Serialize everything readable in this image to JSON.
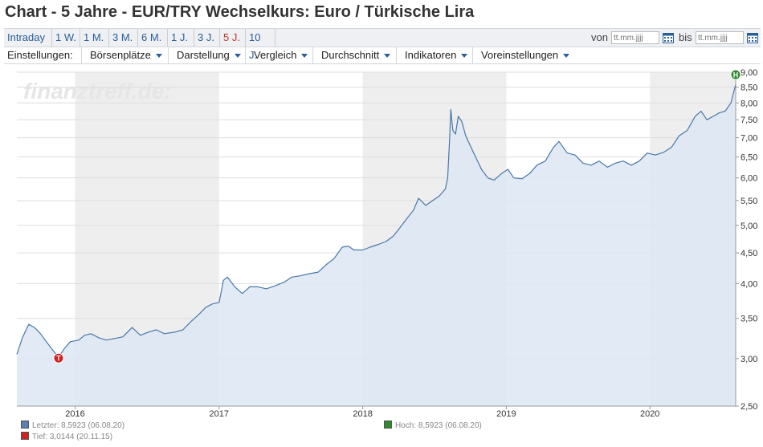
{
  "page_title": "Chart - 5 Jahre - EUR/TRY Wechselkurs: Euro / Türkische Lira",
  "range_buttons": [
    {
      "label": "Intraday",
      "active": false
    },
    {
      "label": "1 W.",
      "active": false
    },
    {
      "label": "1 M.",
      "active": false
    },
    {
      "label": "3 M.",
      "active": false
    },
    {
      "label": "6 M.",
      "active": false
    },
    {
      "label": "1 J.",
      "active": false
    },
    {
      "label": "3 J.",
      "active": false
    },
    {
      "label": "5 J.",
      "active": true
    },
    {
      "label": "10 J.",
      "active": false
    }
  ],
  "date_range": {
    "von_label": "von",
    "bis_label": "bis",
    "von_placeholder": "tt.mm.jjjj",
    "bis_placeholder": "tt.mm.jjjj"
  },
  "settings": {
    "label": "Einstellungen:",
    "dropdowns": [
      "Börsenplätze",
      "Darstellung",
      "Vergleich",
      "Durchschnitt",
      "Indikatoren",
      "Voreinstellungen"
    ]
  },
  "watermark": "finanztreff.de:",
  "colors": {
    "line": "#4a77a8",
    "fill": "#dde8f3",
    "band": "#eeeeee",
    "tief_marker": "#d42020",
    "hoch_marker": "#2e8b2e",
    "letzter_swatch": "#5b7fb0"
  },
  "chart_data": {
    "type": "area",
    "series_name": "EUR/TRY",
    "x_start": "2015-08-06",
    "x_end": "2020-08-06",
    "x_ticks": [
      "2016",
      "2017",
      "2018",
      "2019",
      "2020"
    ],
    "y_scale": "log",
    "ylim": [
      2.5,
      9.0
    ],
    "y_ticks": [
      "2,50",
      "3,00",
      "3,50",
      "4,00",
      "4,50",
      "5,00",
      "5,50",
      "6,00",
      "6,50",
      "7,00",
      "7,50",
      "8,00",
      "8,50",
      "9,00"
    ],
    "grid": true,
    "points": [
      [
        "2015-08-06",
        3.05
      ],
      [
        "2015-08-20",
        3.25
      ],
      [
        "2015-09-05",
        3.42
      ],
      [
        "2015-09-20",
        3.38
      ],
      [
        "2015-10-05",
        3.3
      ],
      [
        "2015-10-20",
        3.2
      ],
      [
        "2015-11-05",
        3.1
      ],
      [
        "2015-11-20",
        3.0144
      ],
      [
        "2015-12-05",
        3.12
      ],
      [
        "2015-12-20",
        3.2
      ],
      [
        "2016-01-10",
        3.22
      ],
      [
        "2016-01-25",
        3.28
      ],
      [
        "2016-02-10",
        3.3
      ],
      [
        "2016-03-01",
        3.25
      ],
      [
        "2016-03-20",
        3.22
      ],
      [
        "2016-04-10",
        3.24
      ],
      [
        "2016-05-01",
        3.26
      ],
      [
        "2016-05-25",
        3.38
      ],
      [
        "2016-06-15",
        3.28
      ],
      [
        "2016-07-05",
        3.32
      ],
      [
        "2016-07-25",
        3.35
      ],
      [
        "2016-08-15",
        3.3
      ],
      [
        "2016-09-10",
        3.32
      ],
      [
        "2016-10-01",
        3.35
      ],
      [
        "2016-10-20",
        3.45
      ],
      [
        "2016-11-10",
        3.55
      ],
      [
        "2016-11-28",
        3.65
      ],
      [
        "2016-12-15",
        3.7
      ],
      [
        "2017-01-01",
        3.72
      ],
      [
        "2017-01-12",
        4.05
      ],
      [
        "2017-01-22",
        4.1
      ],
      [
        "2017-02-10",
        3.95
      ],
      [
        "2017-03-01",
        3.85
      ],
      [
        "2017-03-20",
        3.95
      ],
      [
        "2017-04-10",
        3.95
      ],
      [
        "2017-05-01",
        3.92
      ],
      [
        "2017-05-25",
        3.97
      ],
      [
        "2017-06-15",
        4.02
      ],
      [
        "2017-07-05",
        4.1
      ],
      [
        "2017-07-25",
        4.12
      ],
      [
        "2017-08-15",
        4.15
      ],
      [
        "2017-09-10",
        4.18
      ],
      [
        "2017-09-30",
        4.3
      ],
      [
        "2017-10-20",
        4.4
      ],
      [
        "2017-11-10",
        4.6
      ],
      [
        "2017-11-25",
        4.62
      ],
      [
        "2017-12-10",
        4.55
      ],
      [
        "2018-01-01",
        4.55
      ],
      [
        "2018-01-20",
        4.6
      ],
      [
        "2018-02-10",
        4.65
      ],
      [
        "2018-03-01",
        4.7
      ],
      [
        "2018-03-20",
        4.8
      ],
      [
        "2018-04-05",
        4.95
      ],
      [
        "2018-04-25",
        5.15
      ],
      [
        "2018-05-10",
        5.3
      ],
      [
        "2018-05-23",
        5.55
      ],
      [
        "2018-06-10",
        5.4
      ],
      [
        "2018-06-28",
        5.5
      ],
      [
        "2018-07-15",
        5.6
      ],
      [
        "2018-07-30",
        5.75
      ],
      [
        "2018-08-05",
        6.0
      ],
      [
        "2018-08-10",
        7.0
      ],
      [
        "2018-08-13",
        7.8
      ],
      [
        "2018-08-18",
        7.2
      ],
      [
        "2018-08-25",
        7.1
      ],
      [
        "2018-09-01",
        7.6
      ],
      [
        "2018-09-10",
        7.45
      ],
      [
        "2018-09-20",
        7.05
      ],
      [
        "2018-10-01",
        6.8
      ],
      [
        "2018-10-15",
        6.5
      ],
      [
        "2018-10-30",
        6.2
      ],
      [
        "2018-11-15",
        6.0
      ],
      [
        "2018-12-01",
        5.95
      ],
      [
        "2018-12-20",
        6.1
      ],
      [
        "2019-01-05",
        6.2
      ],
      [
        "2019-01-20",
        6.0
      ],
      [
        "2019-02-10",
        5.98
      ],
      [
        "2019-03-01",
        6.1
      ],
      [
        "2019-03-20",
        6.3
      ],
      [
        "2019-04-10",
        6.4
      ],
      [
        "2019-05-01",
        6.75
      ],
      [
        "2019-05-15",
        6.9
      ],
      [
        "2019-06-05",
        6.6
      ],
      [
        "2019-06-25",
        6.55
      ],
      [
        "2019-07-15",
        6.35
      ],
      [
        "2019-08-05",
        6.3
      ],
      [
        "2019-08-25",
        6.4
      ],
      [
        "2019-09-15",
        6.25
      ],
      [
        "2019-10-05",
        6.35
      ],
      [
        "2019-10-25",
        6.4
      ],
      [
        "2019-11-15",
        6.3
      ],
      [
        "2019-12-05",
        6.4
      ],
      [
        "2019-12-25",
        6.6
      ],
      [
        "2020-01-15",
        6.55
      ],
      [
        "2020-02-05",
        6.62
      ],
      [
        "2020-02-25",
        6.75
      ],
      [
        "2020-03-15",
        7.05
      ],
      [
        "2020-04-05",
        7.2
      ],
      [
        "2020-04-25",
        7.6
      ],
      [
        "2020-05-10",
        7.75
      ],
      [
        "2020-05-25",
        7.5
      ],
      [
        "2020-06-10",
        7.6
      ],
      [
        "2020-06-25",
        7.7
      ],
      [
        "2020-07-10",
        7.75
      ],
      [
        "2020-07-25",
        8.0
      ],
      [
        "2020-08-06",
        8.5923
      ]
    ],
    "markers": [
      {
        "letter": "T",
        "date": "2015-11-20",
        "value": 3.0144
      },
      {
        "letter": "H",
        "date": "2020-08-06",
        "value": 8.5923
      }
    ],
    "legend": [
      {
        "key": "letzter",
        "text": "Letzter: 8,5923 (06.08.20)"
      },
      {
        "key": "tief",
        "text": "Tief: 3,0144 (20.11.15)"
      },
      {
        "key": "hoch",
        "text": "Hoch: 8,5923 (06.08.20)"
      }
    ]
  }
}
